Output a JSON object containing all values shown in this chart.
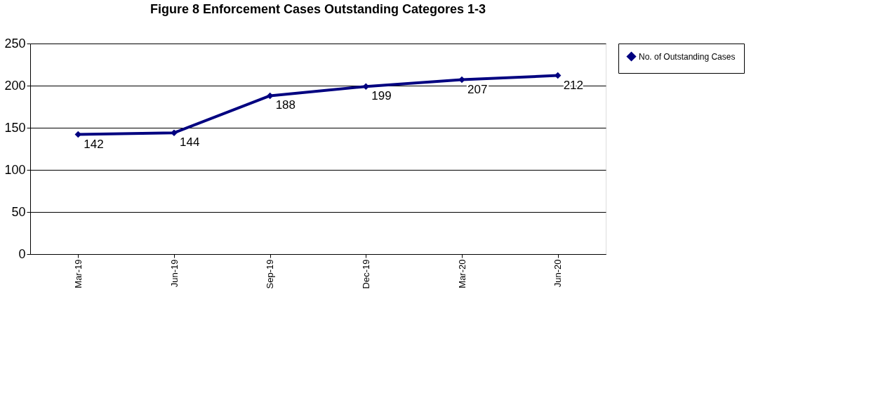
{
  "chart_data": {
    "type": "line",
    "title": "Figure 8 Enforcement Cases Outstanding Categores 1-3",
    "categories": [
      "Mar-19",
      "Jun-19",
      "Sep-19",
      "Dec-19",
      "Mar-20",
      "Jun-20"
    ],
    "series": [
      {
        "name": "No. of Outstanding Cases",
        "color": "#000080",
        "values": [
          142,
          144,
          188,
          199,
          207,
          212
        ]
      }
    ],
    "ylim": [
      0,
      250
    ],
    "yticks": [
      0,
      50,
      100,
      150,
      200,
      250
    ],
    "grid": "y",
    "legend": "right",
    "marker": "diamond",
    "line_style": "solid",
    "data_labels": true
  }
}
